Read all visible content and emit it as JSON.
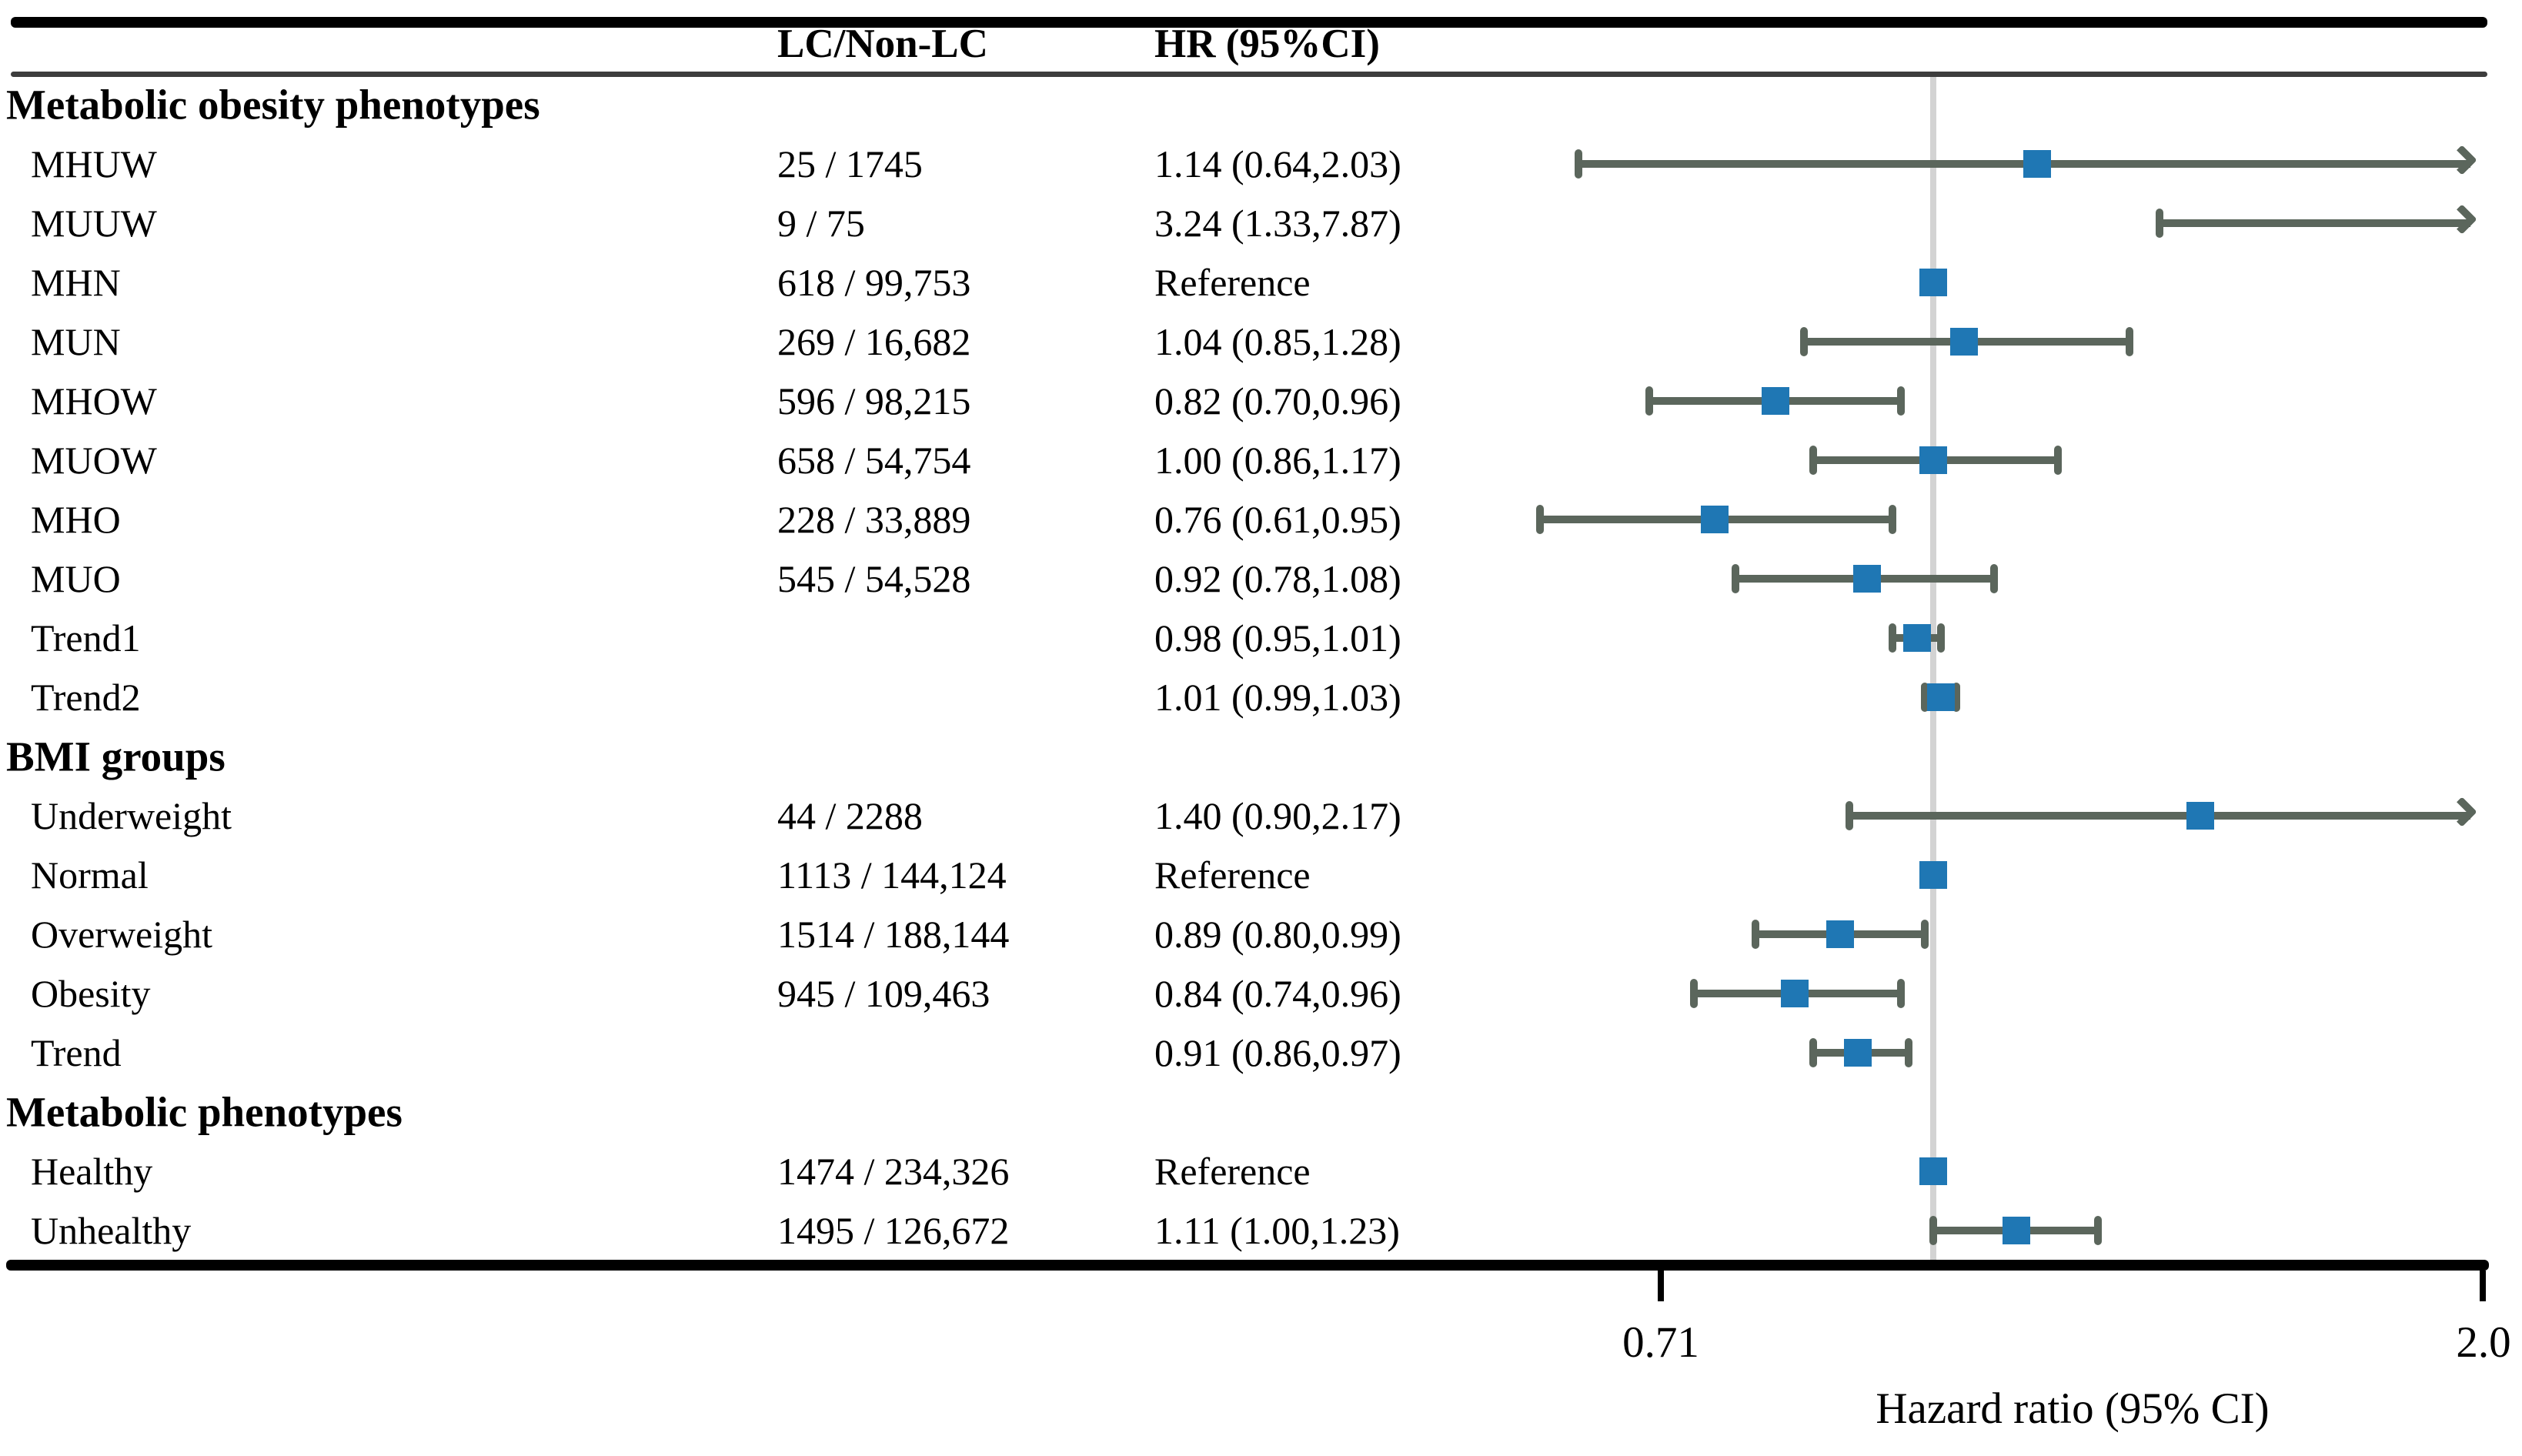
{
  "colors": {
    "marker": "#1f77b4",
    "ci": "#5b665c",
    "reference_line": "#d3d3d3",
    "rule": "#000000",
    "header_rule": "#3d3d3d"
  },
  "chart_data": {
    "type": "forest",
    "xscale": "log",
    "xlabel": "Hazard ratio (95% CI)",
    "xlim": [
      0.71,
      2.0
    ],
    "xticks": [
      0.71,
      2.0
    ],
    "xtick_labels": [
      "0.71",
      "2.0"
    ],
    "reference_value": 1.0,
    "columns": {
      "counts": "LC/Non-LC",
      "hr": "HR (95%CI)"
    },
    "rows": [
      {
        "type": "section",
        "label": "Metabolic obesity phenotypes",
        "counts": "",
        "hr_text": ""
      },
      {
        "type": "item",
        "label": "MHUW",
        "counts": "25 / 1745",
        "hr_text": "1.14 (0.64,2.03)",
        "hr": 1.14,
        "lo": 0.64,
        "hi": 2.03
      },
      {
        "type": "item",
        "label": "MUUW",
        "counts": "9 / 75",
        "hr_text": "3.24 (1.33,7.87)",
        "hr": 3.24,
        "lo": 1.33,
        "hi": 7.87
      },
      {
        "type": "item",
        "label": "MHN",
        "counts": "618 / 99,753",
        "hr_text": "Reference",
        "reference": true
      },
      {
        "type": "item",
        "label": "MUN",
        "counts": "269 / 16,682",
        "hr_text": "1.04 (0.85,1.28)",
        "hr": 1.04,
        "lo": 0.85,
        "hi": 1.28
      },
      {
        "type": "item",
        "label": "MHOW",
        "counts": "596 / 98,215",
        "hr_text": "0.82 (0.70,0.96)",
        "hr": 0.82,
        "lo": 0.7,
        "hi": 0.96
      },
      {
        "type": "item",
        "label": "MUOW",
        "counts": "658 / 54,754",
        "hr_text": "1.00 (0.86,1.17)",
        "hr": 1.0,
        "lo": 0.86,
        "hi": 1.17
      },
      {
        "type": "item",
        "label": "MHO",
        "counts": "228 / 33,889",
        "hr_text": "0.76 (0.61,0.95)",
        "hr": 0.76,
        "lo": 0.61,
        "hi": 0.95
      },
      {
        "type": "item",
        "label": "MUO",
        "counts": "545 / 54,528",
        "hr_text": "0.92 (0.78,1.08)",
        "hr": 0.92,
        "lo": 0.78,
        "hi": 1.08
      },
      {
        "type": "item",
        "label": "Trend1",
        "counts": "",
        "hr_text": "0.98 (0.95,1.01)",
        "hr": 0.98,
        "lo": 0.95,
        "hi": 1.01
      },
      {
        "type": "item",
        "label": "Trend2",
        "counts": "",
        "hr_text": "1.01 (0.99,1.03)",
        "hr": 1.01,
        "lo": 0.99,
        "hi": 1.03
      },
      {
        "type": "section",
        "label": "BMI groups",
        "counts": "",
        "hr_text": ""
      },
      {
        "type": "item",
        "label": "Underweight",
        "counts": "44 / 2288",
        "hr_text": "1.40 (0.90,2.17)",
        "hr": 1.4,
        "lo": 0.9,
        "hi": 2.17
      },
      {
        "type": "item",
        "label": "Normal",
        "counts": "1113 / 144,124",
        "hr_text": "Reference",
        "reference": true
      },
      {
        "type": "item",
        "label": "Overweight",
        "counts": "1514 / 188,144",
        "hr_text": "0.89 (0.80,0.99)",
        "hr": 0.89,
        "lo": 0.8,
        "hi": 0.99
      },
      {
        "type": "item",
        "label": "Obesity",
        "counts": "945 / 109,463",
        "hr_text": "0.84 (0.74,0.96)",
        "hr": 0.84,
        "lo": 0.74,
        "hi": 0.96
      },
      {
        "type": "item",
        "label": "Trend",
        "counts": "",
        "hr_text": "0.91 (0.86,0.97)",
        "hr": 0.91,
        "lo": 0.86,
        "hi": 0.97
      },
      {
        "type": "section",
        "label": "Metabolic phenotypes",
        "counts": "",
        "hr_text": ""
      },
      {
        "type": "item",
        "label": "Healthy",
        "counts": "1474 / 234,326",
        "hr_text": "Reference",
        "reference": true
      },
      {
        "type": "item",
        "label": "Unhealthy",
        "counts": "1495 / 126,672",
        "hr_text": "1.11 (1.00,1.23)",
        "hr": 1.11,
        "lo": 1.0,
        "hi": 1.23
      }
    ]
  }
}
